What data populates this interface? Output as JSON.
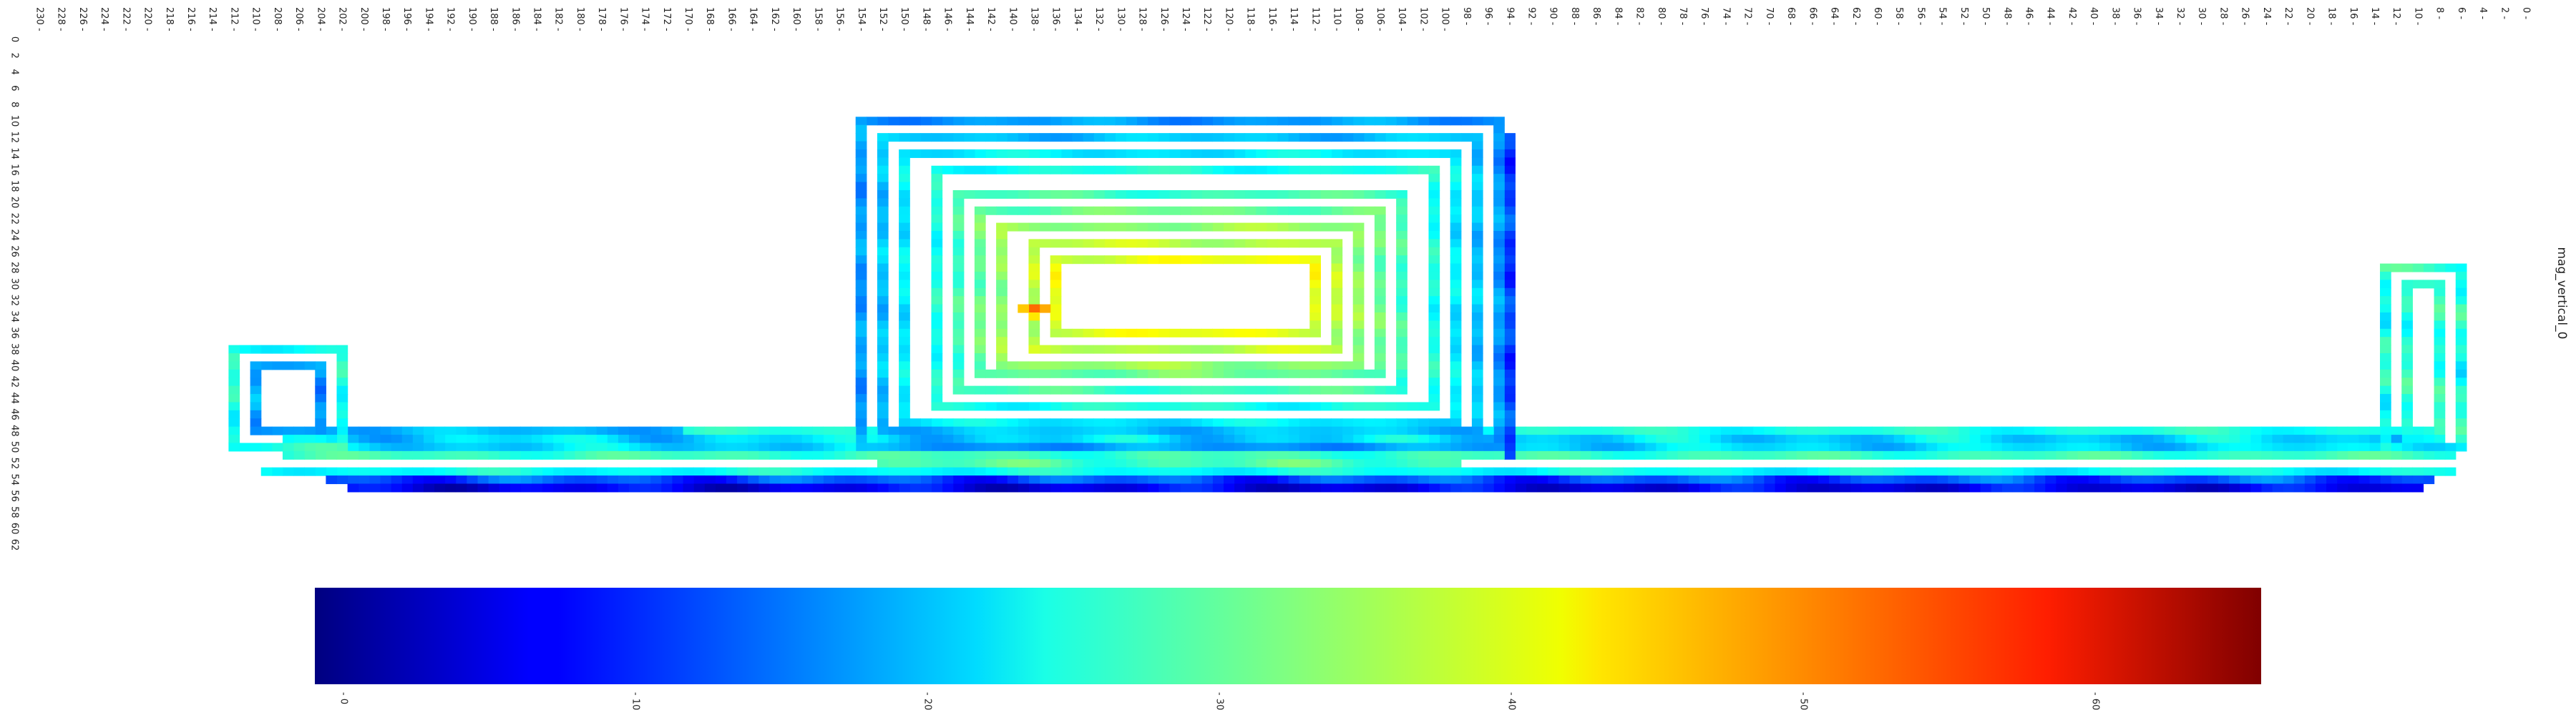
{
  "chart_data": {
    "type": "heatmap",
    "title": "mag_vertical_0",
    "colormap": "jet",
    "x_axis": {
      "orientation": "reversed",
      "range": [
        0,
        230
      ],
      "tick_step": 2,
      "tick_labels": [
        "0",
        "2",
        "4",
        "6",
        "8",
        "10",
        "12",
        "14",
        "16",
        "18",
        "20",
        "22",
        "24",
        "26",
        "28",
        "30",
        "32",
        "34",
        "36",
        "38",
        "40",
        "42",
        "44",
        "46",
        "48",
        "50",
        "52",
        "54",
        "56",
        "58",
        "60",
        "62",
        "64",
        "66",
        "68",
        "70",
        "72",
        "74",
        "76",
        "78",
        "80",
        "82",
        "84",
        "86",
        "88",
        "90",
        "92",
        "94",
        "96",
        "98",
        "100",
        "102",
        "104",
        "106",
        "108",
        "110",
        "112",
        "114",
        "116",
        "118",
        "120",
        "122",
        "124",
        "126",
        "128",
        "130",
        "132",
        "134",
        "136",
        "138",
        "140",
        "142",
        "144",
        "146",
        "148",
        "150",
        "152",
        "154",
        "156",
        "158",
        "160",
        "162",
        "164",
        "166",
        "168",
        "170",
        "172",
        "174",
        "176",
        "178",
        "180",
        "182",
        "184",
        "186",
        "188",
        "190",
        "192",
        "194",
        "196",
        "198",
        "200",
        "202",
        "204",
        "206",
        "208",
        "210",
        "212",
        "214",
        "216",
        "218",
        "220",
        "222",
        "224",
        "226",
        "228",
        "230"
      ]
    },
    "y_axis": {
      "range": [
        0,
        62
      ],
      "tick_step": 2,
      "tick_labels": [
        "0",
        "2",
        "4",
        "6",
        "8",
        "10",
        "12",
        "14",
        "16",
        "18",
        "20",
        "22",
        "24",
        "26",
        "28",
        "30",
        "32",
        "34",
        "36",
        "38",
        "40",
        "42",
        "44",
        "46",
        "48",
        "50",
        "52",
        "54",
        "56",
        "58",
        "60",
        "62"
      ]
    },
    "colorbar": {
      "range": [
        0,
        65
      ],
      "tick_labels": [
        "0",
        "10",
        "20",
        "30",
        "40",
        "50",
        "60"
      ]
    },
    "structure": {
      "lower_channel_x": [
        6,
        209
      ],
      "lower_channel_y": [
        38,
        56
      ],
      "right_hook_x": [
        6,
        13
      ],
      "right_hook_y": [
        28,
        50
      ],
      "left_hook_x": [
        202,
        212
      ],
      "left_hook_y": [
        38,
        50
      ],
      "upper_chamber_x": [
        95,
        154
      ],
      "upper_chamber_y": [
        10,
        50
      ],
      "chamber_center_x": [
        112,
        136
      ],
      "chamber_center_y": [
        27,
        36
      ]
    },
    "value_levels": {
      "background": 26,
      "channel_low": 13,
      "channel_min": 3,
      "chamber_outer": 18,
      "chamber_core": 39,
      "peak": 50,
      "peak_location": [
        138,
        33
      ]
    }
  }
}
